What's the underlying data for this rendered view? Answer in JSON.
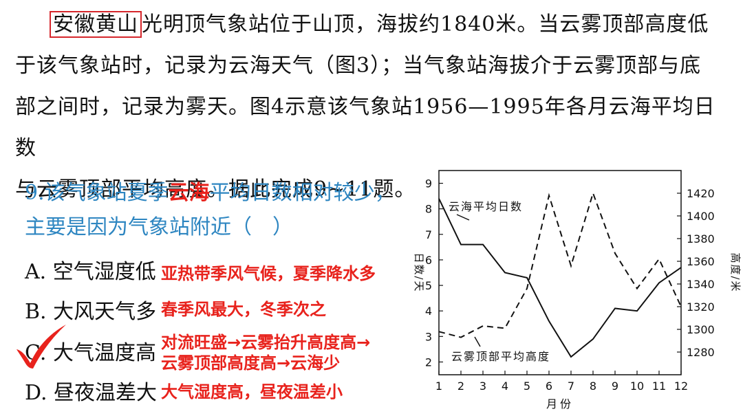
{
  "passage": {
    "highlight": "安徽黄山",
    "line1_rest": "光明顶气象站位于山顶，海拔约1840米。当云雾顶部高度低",
    "line2": "于该气象站时，记录为云海天气（图3）；当气象站海拔介于云雾顶部与底",
    "line3": "部之间时，记录为雾天。图4示意该气象站1956—1995年各月云海平均日数",
    "line4": "与云雾顶部平均高度。据此完成9~11题。"
  },
  "question": {
    "prefix": "9.该气象站夏季",
    "keyword": "云海",
    "suffix": "平均日数相对较少，主要是因为气象站附近（　）"
  },
  "options": [
    {
      "text": "A. 空气湿度低",
      "note": "亚热带季风气候，夏季降水多"
    },
    {
      "text": "B. 大风天气多",
      "note": "春季风最大，冬季次之"
    },
    {
      "text": "C. 大气温度高",
      "note": "对流旺盛→云雾抬升高度高→",
      "note2": "云雾顶部高度高→云海少"
    },
    {
      "text": "D. 昼夜温差大",
      "note": "大气湿度高，昼夜温差小"
    }
  ],
  "check_icon": "checkmark-icon",
  "colors": {
    "accent_red": "#e8221c",
    "question_blue": "#2e86c1"
  },
  "chart_data": {
    "type": "line",
    "x": [
      1,
      2,
      3,
      4,
      5,
      6,
      7,
      8,
      9,
      10,
      11,
      12
    ],
    "xlabel": "月份",
    "ylabel_left": "日数/天",
    "ylabel_right": "高度/米",
    "ylim_left": [
      1.5,
      9.5
    ],
    "ylim_right": [
      1260,
      1440
    ],
    "yticks_left": [
      2,
      3,
      4,
      5,
      6,
      7,
      8,
      9
    ],
    "yticks_right": [
      1280,
      1300,
      1320,
      1340,
      1360,
      1380,
      1400,
      1420
    ],
    "series": [
      {
        "name": "云海平均日数",
        "axis": "left",
        "style": "solid",
        "values": [
          8.4,
          6.6,
          6.6,
          5.5,
          5.3,
          3.6,
          2.2,
          2.9,
          4.1,
          4.0,
          5.1,
          5.7
        ]
      },
      {
        "name": "云雾顶部平均高度",
        "axis": "right",
        "style": "dashed",
        "values": [
          1298,
          1293,
          1303,
          1301,
          1336,
          1418,
          1356,
          1420,
          1367,
          1336,
          1362,
          1320
        ]
      }
    ]
  }
}
